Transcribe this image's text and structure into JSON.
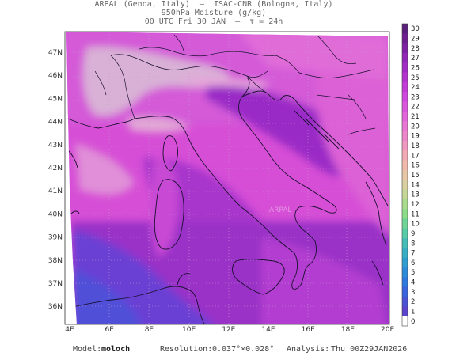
{
  "header": {
    "line1": "ARPAL (Genoa, Italy)  –  ISAC-CNR (Bologna, Italy)",
    "line2": "950hPa Moisture (g/kg)",
    "line3": "00 UTC Fri 30 JAN  –  τ = 24h"
  },
  "map": {
    "lat_labels": [
      "47N",
      "46N",
      "45N",
      "44N",
      "43N",
      "42N",
      "41N",
      "40N",
      "39N",
      "38N",
      "37N",
      "36N"
    ],
    "lon_labels": [
      "4E",
      "6E",
      "8E",
      "10E",
      "12E",
      "14E",
      "16E",
      "18E",
      "20E"
    ],
    "watermark": "ARPAL"
  },
  "colorbar": {
    "labels": [
      "30",
      "29",
      "28",
      "27",
      "26",
      "25",
      "24",
      "23",
      "22",
      "21",
      "20",
      "19",
      "18",
      "17",
      "16",
      "15",
      "14",
      "13",
      "12",
      "11",
      "10",
      "9",
      "8",
      "7",
      "6",
      "5",
      "4",
      "3",
      "2",
      "1",
      "0"
    ],
    "colors": [
      "#5a1f7a",
      "#6d1f8f",
      "#7e22a3",
      "#8f26b5",
      "#a12bc4",
      "#b333cf",
      "#c23bd6",
      "#cf47dc",
      "#d955dc",
      "#e265d9",
      "#e876d2",
      "#ed86c9",
      "#f098bf",
      "#f2aab5",
      "#f0b9ac",
      "#e7c6a6",
      "#d9cfa0",
      "#c4d796",
      "#a8dc8c",
      "#8cdc8a",
      "#6fd596",
      "#56cba6",
      "#43bdb6",
      "#37aec4",
      "#2f9dd0",
      "#2c8bd8",
      "#2f78de",
      "#3a64dd",
      "#4a52d6",
      "#5c45cb",
      "#ffffff"
    ]
  },
  "footer": {
    "model_label": "Model:",
    "model_value": "moloch",
    "resolution_label": "Resolution:",
    "resolution_value": "0.037°×0.028°",
    "analysis_label": "Analysis:",
    "analysis_value": "Thu 00Z29JAN2026"
  }
}
